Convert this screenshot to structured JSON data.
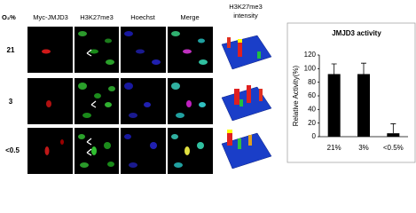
{
  "figure": {
    "o2_header": "O₂%",
    "columns": [
      "Myc-JMJD3",
      "H3K27me3",
      "Hoechst",
      "Merge"
    ],
    "intensity_header": [
      "H3K27me3",
      "intensity"
    ],
    "rows": [
      "21",
      "3",
      "<0.5"
    ]
  },
  "chart_data": {
    "type": "bar",
    "title": "JMJD3 activity",
    "y_label": "Relative Activity(%)",
    "categories": [
      "21%",
      "3%",
      "<0.5%"
    ],
    "values": [
      92,
      92,
      5
    ],
    "errors": [
      15,
      16,
      14
    ],
    "color": "#000000",
    "ylim": [
      0,
      120
    ],
    "yticks": [
      0,
      20,
      40,
      60,
      80,
      100,
      120
    ]
  }
}
